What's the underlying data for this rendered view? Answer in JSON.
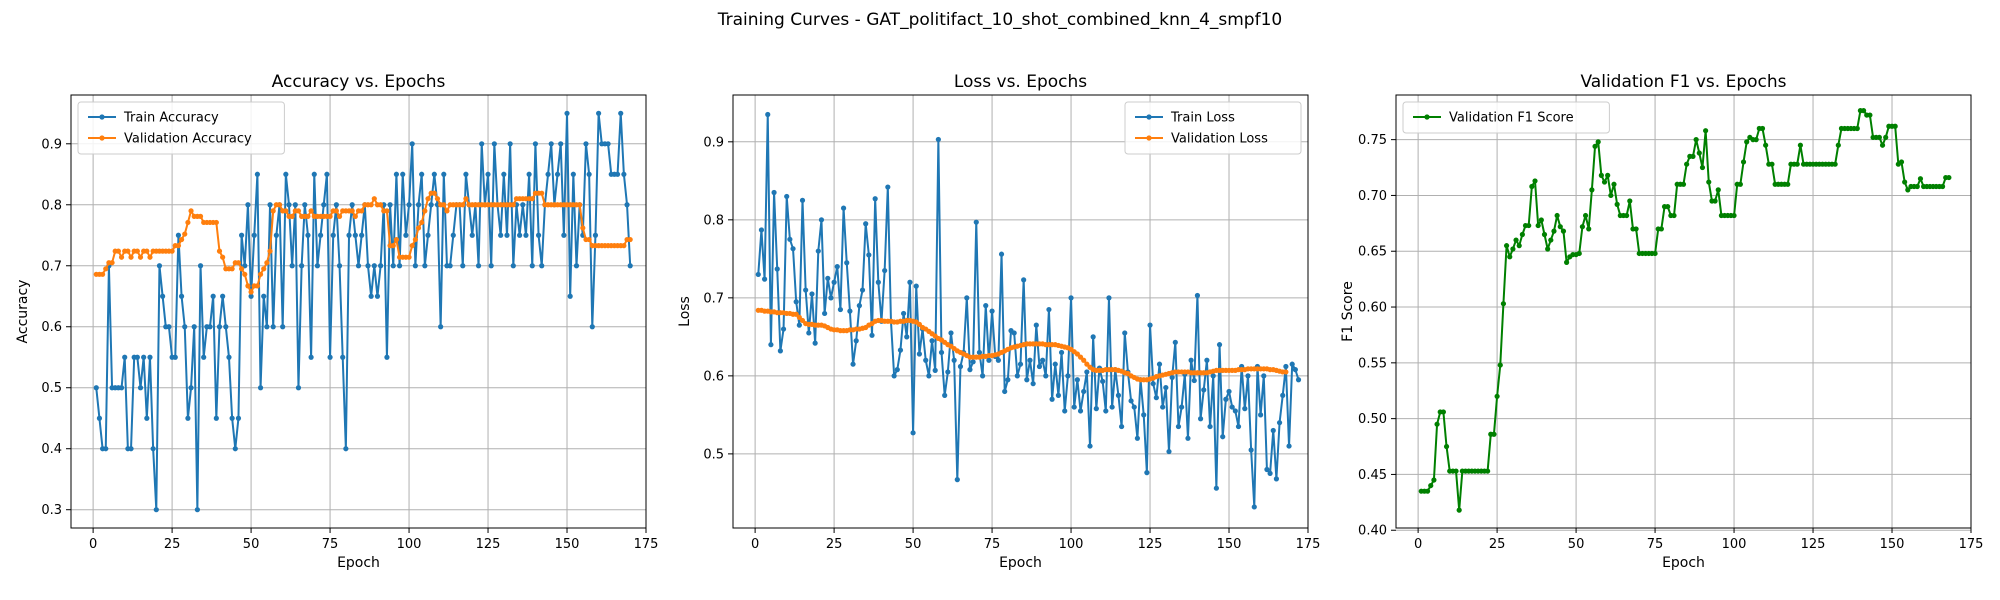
{
  "figure": {
    "suptitle": "Training Curves - GAT_politifact_10_shot_combined_knn_4_smpf10"
  },
  "colors": {
    "train": "#1f77b4",
    "validation": "#ff7f0e",
    "f1": "#008000"
  },
  "chart_data": [
    {
      "type": "line",
      "title": "Accuracy vs. Epochs",
      "xlabel": "Epoch",
      "ylabel": "Accuracy",
      "xlim": [
        -7,
        175
      ],
      "ylim": [
        0.27,
        0.98
      ],
      "xticks": [
        0,
        25,
        50,
        75,
        100,
        125,
        150,
        175
      ],
      "yticks": [
        0.3,
        0.4,
        0.5,
        0.6,
        0.7,
        0.8,
        0.9
      ],
      "grid": true,
      "legend_position": "upper-left",
      "x_start": 1,
      "series": [
        {
          "name": "Train Accuracy",
          "color": "#1f77b4",
          "values": [
            0.5,
            0.45,
            0.4,
            0.4,
            0.7,
            0.5,
            0.5,
            0.5,
            0.5,
            0.55,
            0.4,
            0.4,
            0.55,
            0.55,
            0.5,
            0.55,
            0.45,
            0.55,
            0.4,
            0.3,
            0.7,
            0.65,
            0.6,
            0.6,
            0.55,
            0.55,
            0.75,
            0.65,
            0.6,
            0.45,
            0.5,
            0.6,
            0.3,
            0.7,
            0.55,
            0.6,
            0.6,
            0.65,
            0.45,
            0.6,
            0.65,
            0.6,
            0.55,
            0.45,
            0.4,
            0.45,
            0.75,
            0.7,
            0.8,
            0.65,
            0.75,
            0.85,
            0.5,
            0.65,
            0.6,
            0.8,
            0.6,
            0.75,
            0.8,
            0.6,
            0.85,
            0.8,
            0.7,
            0.8,
            0.5,
            0.7,
            0.8,
            0.75,
            0.55,
            0.85,
            0.7,
            0.75,
            0.8,
            0.85,
            0.55,
            0.75,
            0.8,
            0.7,
            0.55,
            0.4,
            0.75,
            0.8,
            0.75,
            0.7,
            0.75,
            0.8,
            0.7,
            0.65,
            0.7,
            0.65,
            0.7,
            0.8,
            0.55,
            0.8,
            0.7,
            0.85,
            0.7,
            0.85,
            0.75,
            0.8,
            0.9,
            0.7,
            0.8,
            0.85,
            0.7,
            0.75,
            0.8,
            0.85,
            0.8,
            0.6,
            0.85,
            0.7,
            0.7,
            0.75,
            0.8,
            0.8,
            0.7,
            0.85,
            0.8,
            0.75,
            0.8,
            0.7,
            0.9,
            0.8,
            0.85,
            0.7,
            0.9,
            0.8,
            0.75,
            0.85,
            0.75,
            0.9,
            0.7,
            0.8,
            0.75,
            0.8,
            0.75,
            0.85,
            0.7,
            0.9,
            0.75,
            0.7,
            0.8,
            0.85,
            0.9,
            0.8,
            0.85,
            0.9,
            0.75,
            0.95,
            0.65,
            0.85,
            0.7,
            0.8,
            0.75,
            0.9,
            0.85,
            0.6,
            0.75,
            0.95,
            0.9,
            0.9,
            0.9,
            0.85,
            0.85,
            0.85,
            0.95,
            0.85,
            0.8,
            0.7
          ]
        },
        {
          "name": "Validation Accuracy",
          "color": "#ff7f0e",
          "values": [
            0.686,
            0.686,
            0.686,
            0.695,
            0.705,
            0.705,
            0.724,
            0.724,
            0.714,
            0.724,
            0.724,
            0.714,
            0.724,
            0.724,
            0.714,
            0.724,
            0.724,
            0.714,
            0.724,
            0.724,
            0.724,
            0.724,
            0.724,
            0.724,
            0.724,
            0.733,
            0.733,
            0.743,
            0.752,
            0.771,
            0.79,
            0.781,
            0.781,
            0.781,
            0.771,
            0.771,
            0.771,
            0.771,
            0.771,
            0.724,
            0.714,
            0.695,
            0.695,
            0.695,
            0.705,
            0.705,
            0.695,
            0.686,
            0.667,
            0.657,
            0.667,
            0.667,
            0.686,
            0.695,
            0.705,
            0.724,
            0.79,
            0.8,
            0.8,
            0.79,
            0.79,
            0.781,
            0.781,
            0.79,
            0.79,
            0.781,
            0.781,
            0.781,
            0.79,
            0.781,
            0.781,
            0.781,
            0.781,
            0.781,
            0.781,
            0.79,
            0.79,
            0.781,
            0.79,
            0.79,
            0.79,
            0.79,
            0.781,
            0.79,
            0.79,
            0.8,
            0.8,
            0.8,
            0.81,
            0.8,
            0.8,
            0.79,
            0.79,
            0.733,
            0.733,
            0.743,
            0.714,
            0.714,
            0.714,
            0.714,
            0.733,
            0.743,
            0.762,
            0.771,
            0.79,
            0.81,
            0.819,
            0.819,
            0.81,
            0.8,
            0.8,
            0.79,
            0.8,
            0.8,
            0.8,
            0.8,
            0.8,
            0.81,
            0.8,
            0.8,
            0.8,
            0.8,
            0.8,
            0.8,
            0.8,
            0.8,
            0.8,
            0.8,
            0.8,
            0.8,
            0.8,
            0.8,
            0.8,
            0.81,
            0.81,
            0.81,
            0.81,
            0.81,
            0.81,
            0.819,
            0.819,
            0.819,
            0.8,
            0.8,
            0.8,
            0.8,
            0.8,
            0.8,
            0.8,
            0.8,
            0.8,
            0.8,
            0.8,
            0.8,
            0.762,
            0.743,
            0.743,
            0.733,
            0.733,
            0.733,
            0.733,
            0.733,
            0.733,
            0.733,
            0.733,
            0.733,
            0.733,
            0.733,
            0.743,
            0.743
          ]
        }
      ]
    },
    {
      "type": "line",
      "title": "Loss vs. Epochs",
      "xlabel": "Epoch",
      "ylabel": "Loss",
      "xlim": [
        -7,
        175
      ],
      "ylim": [
        0.405,
        0.96
      ],
      "xticks": [
        0,
        25,
        50,
        75,
        100,
        125,
        150,
        175
      ],
      "yticks": [
        0.5,
        0.6,
        0.7,
        0.8,
        0.9
      ],
      "grid": true,
      "legend_position": "upper-right",
      "x_start": 1,
      "series": [
        {
          "name": "Train Loss",
          "color": "#1f77b4",
          "values": [
            0.73,
            0.787,
            0.724,
            0.935,
            0.64,
            0.835,
            0.737,
            0.632,
            0.66,
            0.83,
            0.775,
            0.763,
            0.695,
            0.665,
            0.825,
            0.71,
            0.655,
            0.705,
            0.642,
            0.76,
            0.8,
            0.68,
            0.725,
            0.7,
            0.72,
            0.74,
            0.685,
            0.815,
            0.745,
            0.683,
            0.615,
            0.645,
            0.69,
            0.71,
            0.795,
            0.755,
            0.652,
            0.827,
            0.72,
            0.67,
            0.735,
            0.842,
            0.67,
            0.6,
            0.608,
            0.633,
            0.68,
            0.65,
            0.72,
            0.527,
            0.715,
            0.628,
            0.66,
            0.62,
            0.6,
            0.645,
            0.607,
            0.903,
            0.63,
            0.575,
            0.605,
            0.655,
            0.62,
            0.467,
            0.612,
            0.63,
            0.7,
            0.608,
            0.618,
            0.797,
            0.63,
            0.6,
            0.69,
            0.62,
            0.683,
            0.625,
            0.62,
            0.756,
            0.58,
            0.595,
            0.658,
            0.655,
            0.6,
            0.615,
            0.723,
            0.595,
            0.62,
            0.59,
            0.665,
            0.612,
            0.62,
            0.6,
            0.685,
            0.57,
            0.615,
            0.575,
            0.63,
            0.555,
            0.6,
            0.7,
            0.56,
            0.595,
            0.555,
            0.58,
            0.605,
            0.51,
            0.65,
            0.558,
            0.61,
            0.593,
            0.555,
            0.7,
            0.56,
            0.608,
            0.575,
            0.535,
            0.655,
            0.605,
            0.568,
            0.56,
            0.52,
            0.595,
            0.55,
            0.476,
            0.665,
            0.59,
            0.572,
            0.615,
            0.56,
            0.585,
            0.503,
            0.598,
            0.643,
            0.535,
            0.56,
            0.602,
            0.52,
            0.62,
            0.594,
            0.703,
            0.545,
            0.582,
            0.62,
            0.535,
            0.6,
            0.456,
            0.64,
            0.522,
            0.57,
            0.58,
            0.56,
            0.555,
            0.535,
            0.612,
            0.558,
            0.6,
            0.505,
            0.432,
            0.612,
            0.55,
            0.6,
            0.48,
            0.475,
            0.53,
            0.468,
            0.54,
            0.575,
            0.612,
            0.51,
            0.615,
            0.608,
            0.595
          ]
        },
        {
          "name": "Validation Loss",
          "color": "#ff7f0e",
          "values": [
            0.684,
            0.684,
            0.683,
            0.683,
            0.682,
            0.682,
            0.681,
            0.681,
            0.681,
            0.68,
            0.68,
            0.679,
            0.679,
            0.675,
            0.671,
            0.667,
            0.666,
            0.666,
            0.665,
            0.665,
            0.665,
            0.664,
            0.662,
            0.66,
            0.659,
            0.659,
            0.658,
            0.658,
            0.658,
            0.659,
            0.659,
            0.66,
            0.66,
            0.661,
            0.662,
            0.665,
            0.667,
            0.67,
            0.671,
            0.671,
            0.67,
            0.67,
            0.67,
            0.669,
            0.669,
            0.67,
            0.67,
            0.671,
            0.671,
            0.67,
            0.669,
            0.666,
            0.662,
            0.66,
            0.657,
            0.654,
            0.651,
            0.648,
            0.646,
            0.643,
            0.64,
            0.638,
            0.635,
            0.632,
            0.63,
            0.628,
            0.626,
            0.624,
            0.624,
            0.624,
            0.624,
            0.625,
            0.625,
            0.626,
            0.626,
            0.627,
            0.628,
            0.63,
            0.632,
            0.634,
            0.636,
            0.637,
            0.638,
            0.639,
            0.64,
            0.641,
            0.641,
            0.641,
            0.641,
            0.641,
            0.641,
            0.64,
            0.64,
            0.64,
            0.64,
            0.639,
            0.638,
            0.637,
            0.636,
            0.634,
            0.631,
            0.628,
            0.624,
            0.62,
            0.615,
            0.611,
            0.608,
            0.607,
            0.607,
            0.607,
            0.608,
            0.608,
            0.608,
            0.608,
            0.607,
            0.606,
            0.604,
            0.603,
            0.6,
            0.598,
            0.596,
            0.595,
            0.595,
            0.595,
            0.596,
            0.597,
            0.599,
            0.6,
            0.601,
            0.602,
            0.603,
            0.604,
            0.605,
            0.605,
            0.605,
            0.605,
            0.605,
            0.604,
            0.604,
            0.604,
            0.604,
            0.604,
            0.604,
            0.605,
            0.606,
            0.607,
            0.607,
            0.607,
            0.607,
            0.607,
            0.607,
            0.607,
            0.608,
            0.608,
            0.608,
            0.609,
            0.609,
            0.609,
            0.609,
            0.609,
            0.609,
            0.609,
            0.608,
            0.608,
            0.607,
            0.606,
            0.605,
            0.605
          ]
        }
      ]
    },
    {
      "type": "line",
      "title": "Validation F1 vs. Epochs",
      "xlabel": "Epoch",
      "ylabel": "F1 Score",
      "xlim": [
        -7,
        175
      ],
      "ylim": [
        0.402,
        0.79
      ],
      "xticks": [
        0,
        25,
        50,
        75,
        100,
        125,
        150,
        175
      ],
      "yticks": [
        0.4,
        0.45,
        0.5,
        0.55,
        0.6,
        0.65,
        0.7,
        0.75
      ],
      "grid": true,
      "legend_position": "upper-left",
      "x_start": 1,
      "series": [
        {
          "name": "Validation F1 Score",
          "color": "#008000",
          "values": [
            0.435,
            0.435,
            0.435,
            0.44,
            0.445,
            0.495,
            0.506,
            0.506,
            0.475,
            0.453,
            0.453,
            0.453,
            0.418,
            0.453,
            0.453,
            0.453,
            0.453,
            0.453,
            0.453,
            0.453,
            0.453,
            0.453,
            0.486,
            0.486,
            0.52,
            0.548,
            0.603,
            0.655,
            0.645,
            0.652,
            0.66,
            0.655,
            0.665,
            0.673,
            0.673,
            0.708,
            0.713,
            0.673,
            0.678,
            0.665,
            0.652,
            0.66,
            0.668,
            0.682,
            0.672,
            0.668,
            0.64,
            0.645,
            0.647,
            0.647,
            0.648,
            0.672,
            0.682,
            0.67,
            0.705,
            0.744,
            0.748,
            0.718,
            0.712,
            0.718,
            0.7,
            0.71,
            0.692,
            0.682,
            0.682,
            0.682,
            0.695,
            0.67,
            0.67,
            0.648,
            0.648,
            0.648,
            0.648,
            0.648,
            0.648,
            0.67,
            0.67,
            0.69,
            0.69,
            0.682,
            0.682,
            0.71,
            0.71,
            0.71,
            0.728,
            0.735,
            0.735,
            0.75,
            0.738,
            0.725,
            0.758,
            0.712,
            0.695,
            0.695,
            0.705,
            0.682,
            0.682,
            0.682,
            0.682,
            0.682,
            0.71,
            0.71,
            0.73,
            0.748,
            0.752,
            0.75,
            0.75,
            0.76,
            0.76,
            0.745,
            0.728,
            0.728,
            0.71,
            0.71,
            0.71,
            0.71,
            0.71,
            0.728,
            0.728,
            0.728,
            0.745,
            0.728,
            0.728,
            0.728,
            0.728,
            0.728,
            0.728,
            0.728,
            0.728,
            0.728,
            0.728,
            0.728,
            0.745,
            0.76,
            0.76,
            0.76,
            0.76,
            0.76,
            0.76,
            0.776,
            0.776,
            0.772,
            0.772,
            0.752,
            0.752,
            0.752,
            0.745,
            0.752,
            0.762,
            0.762,
            0.762,
            0.728,
            0.73,
            0.712,
            0.705,
            0.708,
            0.708,
            0.708,
            0.715,
            0.708,
            0.708,
            0.708,
            0.708,
            0.708,
            0.708,
            0.708,
            0.716,
            0.716
          ]
        }
      ]
    }
  ]
}
